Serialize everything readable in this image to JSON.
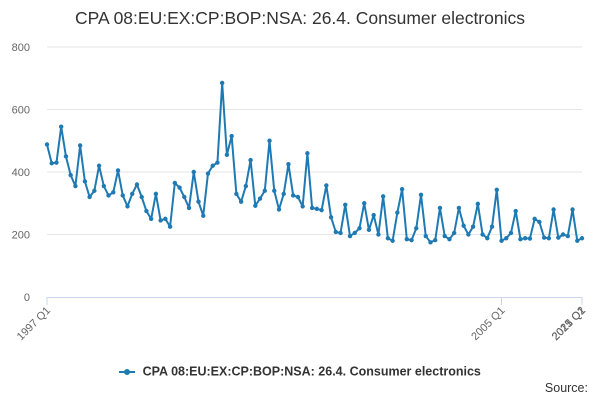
{
  "chart_data": {
    "type": "line",
    "title": "CPA 08:EU:EX:CP:BOP:NSA: 26.4. Consumer electronics",
    "xlabel": "",
    "ylabel": "",
    "x_tick_labels": [
      "1997 Q1",
      "2005 Q1",
      "2013 Q1",
      "2021 Q1",
      "2025 Q2"
    ],
    "y_ticks": [
      0,
      200,
      400,
      600,
      800
    ],
    "ylim": [
      0,
      800
    ],
    "xlim": [
      "1997 Q1",
      "2025 Q2"
    ],
    "grid": "horizontal",
    "legend_position": "bottom",
    "series_color": "#1f7ab3",
    "series": [
      {
        "name": "CPA 08:EU:EX:CP:BOP:NSA: 26.4. Consumer electronics",
        "start": "1997-01",
        "frequency": "monthly",
        "values": [
          488,
          428,
          430,
          545,
          450,
          390,
          355,
          485,
          370,
          320,
          340,
          420,
          355,
          325,
          335,
          405,
          325,
          290,
          330,
          360,
          320,
          275,
          250,
          330,
          245,
          250,
          225,
          365,
          350,
          320,
          285,
          400,
          305,
          260,
          395,
          420,
          430,
          685,
          455,
          515,
          330,
          305,
          355,
          438,
          292,
          315,
          340,
          500,
          340,
          280,
          330,
          425,
          325,
          320,
          290,
          460,
          285,
          282,
          278,
          357,
          255,
          208,
          205,
          295,
          195,
          205,
          220,
          300,
          215,
          262,
          200,
          322,
          188,
          180,
          270,
          345,
          185,
          182,
          220,
          327,
          195,
          175,
          182,
          285,
          195,
          185,
          205,
          285,
          228,
          200,
          225,
          298,
          200,
          188,
          225,
          343,
          180,
          188,
          205,
          275,
          185,
          188,
          187,
          250,
          240,
          190,
          188,
          280,
          190,
          200,
          195,
          280,
          180,
          188
        ]
      }
    ]
  },
  "legend": {
    "label": "CPA 08:EU:EX:CP:BOP:NSA: 26.4. Consumer electronics"
  },
  "footer": {
    "source_label": "Source:"
  }
}
